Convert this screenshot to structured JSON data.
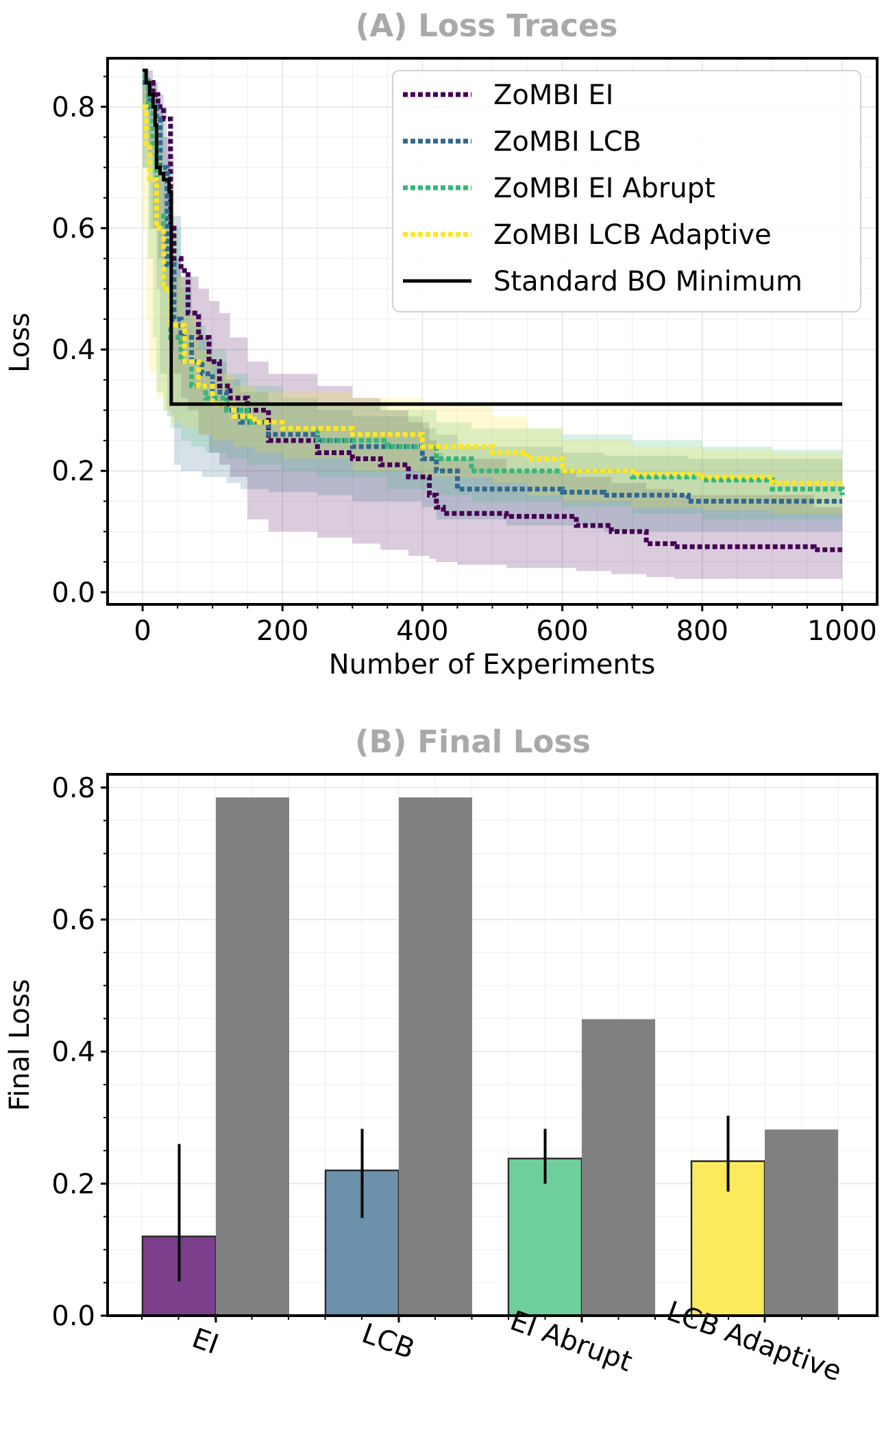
{
  "chart_data": [
    {
      "type": "line",
      "title": "(A) Loss Traces",
      "xlabel": "Number of Experiments",
      "ylabel": "Loss",
      "xlim": [
        -50,
        1050
      ],
      "ylim": [
        -0.02,
        0.88
      ],
      "xticks": [
        "0",
        "200",
        "400",
        "600",
        "800",
        "1000"
      ],
      "yticks": [
        "0.0",
        "0.2",
        "0.4",
        "0.6",
        "0.8"
      ],
      "legend_position": "top-right",
      "series": [
        {
          "name": "ZoMBI EI",
          "color": "#440154",
          "style": "dotted",
          "x": [
            0,
            8,
            15,
            22,
            30,
            40,
            45,
            55,
            65,
            80,
            95,
            110,
            125,
            150,
            180,
            250,
            300,
            340,
            380,
            410,
            420,
            430,
            450,
            520,
            620,
            670,
            720,
            760,
            960,
            1000
          ],
          "y": [
            0.85,
            0.84,
            0.82,
            0.8,
            0.78,
            0.6,
            0.55,
            0.53,
            0.46,
            0.42,
            0.38,
            0.34,
            0.32,
            0.3,
            0.25,
            0.23,
            0.22,
            0.21,
            0.19,
            0.16,
            0.14,
            0.13,
            0.13,
            0.125,
            0.11,
            0.1,
            0.08,
            0.075,
            0.07,
            0.07
          ],
          "upper": [
            0.86,
            0.86,
            0.84,
            0.82,
            0.75,
            0.62,
            0.55,
            0.52,
            0.52,
            0.5,
            0.48,
            0.46,
            0.42,
            0.38,
            0.36,
            0.34,
            0.32,
            0.3,
            0.28,
            0.25,
            0.23,
            0.22,
            0.22,
            0.2,
            0.19,
            0.18,
            0.17,
            0.16,
            0.14,
            0.14
          ],
          "lower": [
            0.84,
            0.8,
            0.72,
            0.6,
            0.55,
            0.5,
            0.4,
            0.36,
            0.32,
            0.3,
            0.26,
            0.23,
            0.21,
            0.19,
            0.12,
            0.1,
            0.09,
            0.08,
            0.07,
            0.06,
            0.055,
            0.05,
            0.05,
            0.045,
            0.04,
            0.035,
            0.03,
            0.025,
            0.022,
            0.022
          ]
        },
        {
          "name": "ZoMBI LCB",
          "color": "#31688e",
          "style": "dotted",
          "x": [
            0,
            10,
            20,
            25,
            35,
            45,
            55,
            70,
            85,
            100,
            120,
            140,
            180,
            250,
            300,
            400,
            420,
            450,
            520,
            600,
            640,
            660,
            760,
            780,
            1000
          ],
          "y": [
            0.84,
            0.8,
            0.78,
            0.7,
            0.54,
            0.45,
            0.42,
            0.38,
            0.36,
            0.33,
            0.3,
            0.28,
            0.26,
            0.25,
            0.24,
            0.22,
            0.2,
            0.17,
            0.17,
            0.165,
            0.165,
            0.16,
            0.16,
            0.15,
            0.15
          ],
          "upper": [
            0.86,
            0.84,
            0.82,
            0.8,
            0.72,
            0.62,
            0.52,
            0.46,
            0.42,
            0.38,
            0.35,
            0.33,
            0.31,
            0.3,
            0.29,
            0.27,
            0.26,
            0.24,
            0.24,
            0.23,
            0.23,
            0.225,
            0.225,
            0.22,
            0.22
          ],
          "lower": [
            0.82,
            0.7,
            0.6,
            0.5,
            0.36,
            0.29,
            0.21,
            0.2,
            0.2,
            0.19,
            0.19,
            0.18,
            0.17,
            0.165,
            0.16,
            0.15,
            0.14,
            0.12,
            0.12,
            0.11,
            0.11,
            0.105,
            0.1,
            0.1,
            0.1
          ]
        },
        {
          "name": "ZoMBI EI Abrupt",
          "color": "#35b779",
          "style": "dotted",
          "x": [
            0,
            8,
            15,
            20,
            30,
            40,
            55,
            70,
            90,
            120,
            150,
            200,
            250,
            350,
            420,
            470,
            600,
            700,
            800,
            900,
            1000
          ],
          "y": [
            0.85,
            0.8,
            0.74,
            0.62,
            0.5,
            0.42,
            0.38,
            0.34,
            0.32,
            0.3,
            0.28,
            0.27,
            0.25,
            0.24,
            0.22,
            0.2,
            0.2,
            0.19,
            0.185,
            0.17,
            0.16
          ],
          "upper": [
            0.86,
            0.84,
            0.82,
            0.78,
            0.7,
            0.6,
            0.5,
            0.44,
            0.4,
            0.36,
            0.34,
            0.32,
            0.31,
            0.3,
            0.28,
            0.27,
            0.26,
            0.25,
            0.24,
            0.235,
            0.22
          ],
          "lower": [
            0.84,
            0.7,
            0.55,
            0.42,
            0.33,
            0.3,
            0.27,
            0.25,
            0.24,
            0.23,
            0.22,
            0.21,
            0.2,
            0.19,
            0.17,
            0.16,
            0.15,
            0.14,
            0.13,
            0.12,
            0.12
          ]
        },
        {
          "name": "ZoMBI LCB Adaptive",
          "color": "#fde725",
          "style": "dotted",
          "x": [
            0,
            5,
            10,
            20,
            30,
            40,
            60,
            80,
            100,
            130,
            160,
            200,
            300,
            400,
            500,
            550,
            600,
            700,
            800,
            900,
            1000
          ],
          "y": [
            0.8,
            0.74,
            0.68,
            0.6,
            0.5,
            0.44,
            0.38,
            0.34,
            0.31,
            0.29,
            0.28,
            0.27,
            0.26,
            0.24,
            0.23,
            0.22,
            0.2,
            0.195,
            0.19,
            0.18,
            0.175
          ],
          "upper": [
            0.84,
            0.82,
            0.78,
            0.72,
            0.62,
            0.52,
            0.46,
            0.4,
            0.36,
            0.34,
            0.33,
            0.33,
            0.32,
            0.31,
            0.29,
            0.27,
            0.25,
            0.24,
            0.235,
            0.23,
            0.23
          ],
          "lower": [
            0.74,
            0.6,
            0.45,
            0.36,
            0.32,
            0.3,
            0.28,
            0.27,
            0.26,
            0.25,
            0.24,
            0.23,
            0.22,
            0.2,
            0.19,
            0.18,
            0.16,
            0.15,
            0.14,
            0.135,
            0.13
          ]
        },
        {
          "name": "Standard BO Minimum",
          "color": "#000000",
          "style": "solid",
          "x": [
            0,
            3,
            5,
            8,
            10,
            15,
            18,
            20,
            25,
            30,
            35,
            38,
            40,
            41,
            45,
            1000
          ],
          "y": [
            0.86,
            0.86,
            0.84,
            0.84,
            0.82,
            0.8,
            0.77,
            0.7,
            0.69,
            0.68,
            0.68,
            0.66,
            0.66,
            0.31,
            0.31,
            0.31
          ]
        }
      ]
    },
    {
      "type": "bar",
      "title": "(B) Final Loss",
      "xlabel": "",
      "ylabel": "Final Loss",
      "ylim": [
        0,
        0.82
      ],
      "yticks": [
        "0.0",
        "0.2",
        "0.4",
        "0.6",
        "0.8"
      ],
      "categories": [
        "EI",
        "LCB",
        "EI Abrupt",
        "LCB Adaptive"
      ],
      "series": [
        {
          "name": "ZoMBI",
          "colors": [
            "#7b3f8c",
            "#6b91ad",
            "#6fcf9c",
            "#fde95c"
          ],
          "values": [
            0.12,
            0.22,
            0.238,
            0.234
          ],
          "err_low": [
            0.052,
            0.148,
            0.2,
            0.188
          ],
          "err_high": [
            0.26,
            0.283,
            0.283,
            0.303
          ]
        },
        {
          "name": "Standard BO",
          "colors": [
            "#808080",
            "#808080",
            "#808080",
            "#808080"
          ],
          "values": [
            0.785,
            0.785,
            0.449,
            0.282
          ]
        }
      ]
    }
  ]
}
